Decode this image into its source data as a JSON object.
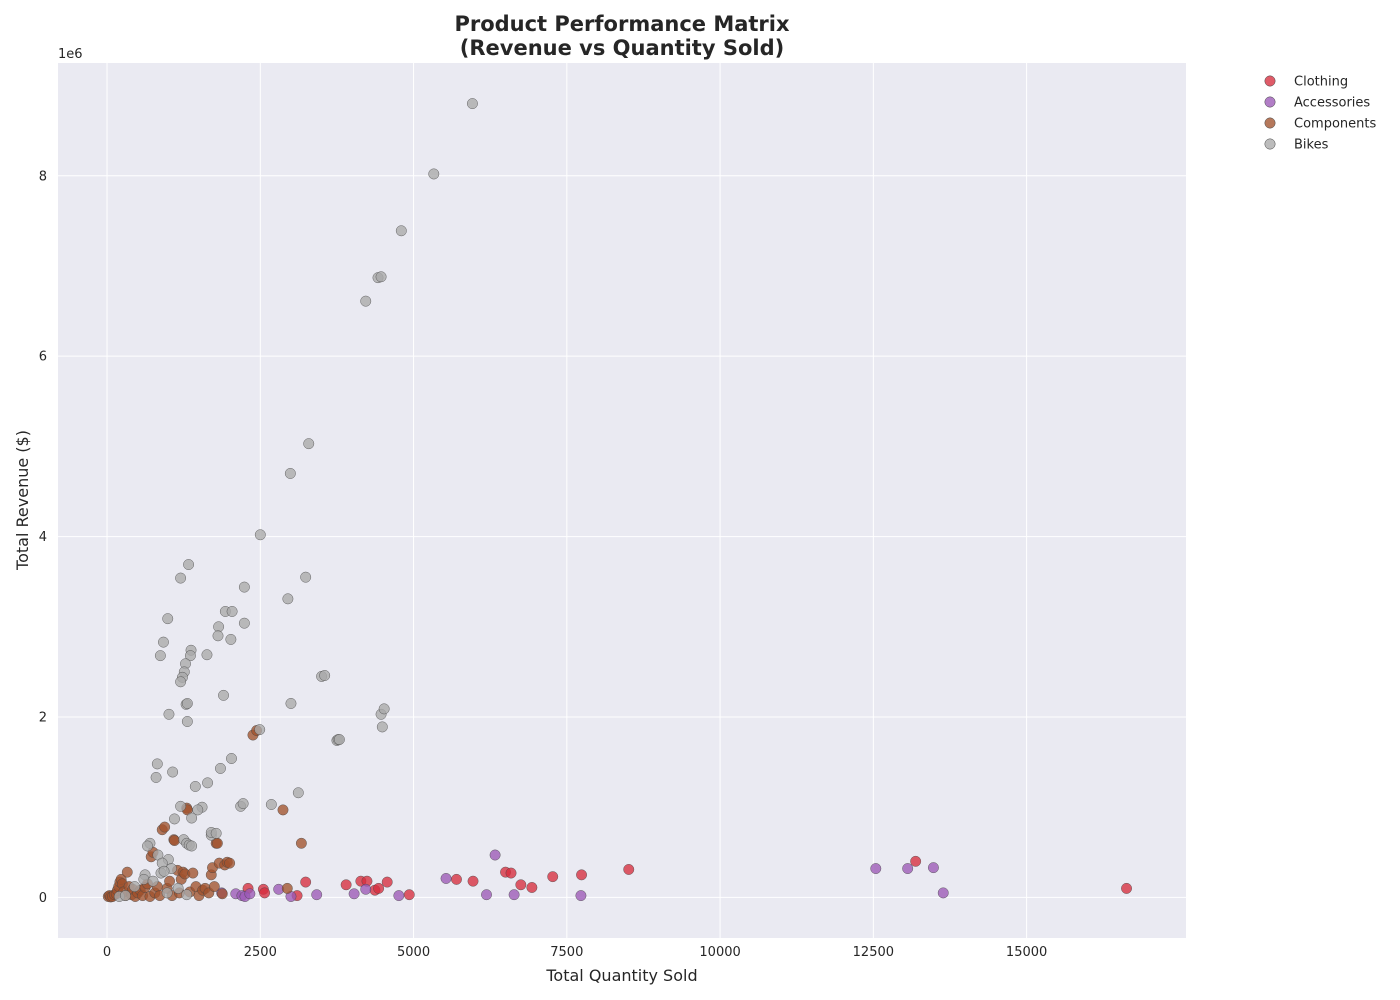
{
  "chart_data": {
    "type": "scatter",
    "title": [
      "Product Performance Matrix",
      "(Revenue vs Quantity Sold)"
    ],
    "xlabel": "Total Quantity Sold",
    "ylabel": "Total Revenue ($)",
    "y_offset_label": "1e6",
    "xlim": [
      -800,
      17600
    ],
    "ylim": [
      -0.45,
      9.25
    ],
    "xticks": [
      0,
      2500,
      5000,
      7500,
      10000,
      12500,
      15000
    ],
    "yticks": [
      0,
      2,
      4,
      6,
      8
    ],
    "grid": true,
    "legend_position": "outside-top-right",
    "series": [
      {
        "name": "Clothing",
        "color": "#d62d3d",
        "points": [
          [
            2300,
            0.1
          ],
          [
            2550,
            0.09
          ],
          [
            2570,
            0.05
          ],
          [
            3100,
            0.02
          ],
          [
            3240,
            0.17
          ],
          [
            3900,
            0.14
          ],
          [
            4140,
            0.18
          ],
          [
            4240,
            0.18
          ],
          [
            4370,
            0.08
          ],
          [
            4430,
            0.1
          ],
          [
            4570,
            0.17
          ],
          [
            4930,
            0.03
          ],
          [
            5700,
            0.2
          ],
          [
            5970,
            0.18
          ],
          [
            6500,
            0.28
          ],
          [
            6590,
            0.27
          ],
          [
            6750,
            0.14
          ],
          [
            6930,
            0.11
          ],
          [
            7270,
            0.23
          ],
          [
            7740,
            0.25
          ],
          [
            8510,
            0.31
          ],
          [
            13190,
            0.4
          ],
          [
            16630,
            0.1
          ]
        ]
      },
      {
        "name": "Accessories",
        "color": "#9b59b6",
        "points": [
          [
            1870,
            0.05
          ],
          [
            2100,
            0.04
          ],
          [
            2200,
            0.02
          ],
          [
            2250,
            0.01
          ],
          [
            2330,
            0.04
          ],
          [
            2800,
            0.09
          ],
          [
            3000,
            0.01
          ],
          [
            3420,
            0.03
          ],
          [
            4030,
            0.04
          ],
          [
            4220,
            0.09
          ],
          [
            4760,
            0.02
          ],
          [
            5530,
            0.21
          ],
          [
            6190,
            0.03
          ],
          [
            6330,
            0.47
          ],
          [
            6640,
            0.03
          ],
          [
            7730,
            0.02
          ],
          [
            12540,
            0.32
          ],
          [
            13060,
            0.32
          ],
          [
            13480,
            0.33
          ],
          [
            13640,
            0.05
          ]
        ]
      },
      {
        "name": "Components",
        "color": "#a0522d",
        "points": [
          [
            20,
            0.01
          ],
          [
            40,
            0.02
          ],
          [
            60,
            0.005
          ],
          [
            90,
            0.01
          ],
          [
            120,
            0.03
          ],
          [
            150,
            0.04
          ],
          [
            170,
            0.08
          ],
          [
            190,
            0.12
          ],
          [
            210,
            0.17
          ],
          [
            230,
            0.2
          ],
          [
            250,
            0.15
          ],
          [
            270,
            0.06
          ],
          [
            300,
            0.02
          ],
          [
            330,
            0.28
          ],
          [
            360,
            0.12
          ],
          [
            400,
            0.03
          ],
          [
            420,
            0.09
          ],
          [
            460,
            0.01
          ],
          [
            500,
            0.05
          ],
          [
            540,
            0.08
          ],
          [
            580,
            0.02
          ],
          [
            620,
            0.11
          ],
          [
            660,
            0.15
          ],
          [
            700,
            0.01
          ],
          [
            720,
            0.45
          ],
          [
            750,
            0.5
          ],
          [
            780,
            0.05
          ],
          [
            820,
            0.12
          ],
          [
            860,
            0.02
          ],
          [
            900,
            0.75
          ],
          [
            940,
            0.78
          ],
          [
            980,
            0.1
          ],
          [
            1020,
            0.18
          ],
          [
            1060,
            0.02
          ],
          [
            1090,
            0.64
          ],
          [
            1100,
            0.63
          ],
          [
            1150,
            0.3
          ],
          [
            1180,
            0.05
          ],
          [
            1210,
            0.2
          ],
          [
            1240,
            0.28
          ],
          [
            1270,
            0.26
          ],
          [
            1300,
            0.99
          ],
          [
            1310,
            0.97
          ],
          [
            1350,
            0.06
          ],
          [
            1400,
            0.27
          ],
          [
            1450,
            0.12
          ],
          [
            1500,
            0.02
          ],
          [
            1560,
            0.08
          ],
          [
            1600,
            0.1
          ],
          [
            1660,
            0.05
          ],
          [
            1700,
            0.25
          ],
          [
            1720,
            0.33
          ],
          [
            1750,
            0.12
          ],
          [
            1780,
            0.6
          ],
          [
            1800,
            0.6
          ],
          [
            1830,
            0.38
          ],
          [
            1880,
            0.04
          ],
          [
            1920,
            0.36
          ],
          [
            1960,
            0.39
          ],
          [
            2000,
            0.38
          ],
          [
            2380,
            1.8
          ],
          [
            2440,
            1.85
          ],
          [
            2870,
            0.97
          ],
          [
            2940,
            0.1
          ],
          [
            3170,
            0.6
          ]
        ]
      },
      {
        "name": "Bikes",
        "color": "#a9a9a9",
        "points": [
          [
            5960,
            8.8
          ],
          [
            5330,
            8.02
          ],
          [
            4800,
            7.39
          ],
          [
            4420,
            6.87
          ],
          [
            4470,
            6.88
          ],
          [
            4220,
            6.61
          ],
          [
            3290,
            5.03
          ],
          [
            2990,
            4.7
          ],
          [
            2500,
            4.02
          ],
          [
            1330,
            3.69
          ],
          [
            1200,
            3.54
          ],
          [
            3240,
            3.55
          ],
          [
            2240,
            3.44
          ],
          [
            2950,
            3.31
          ],
          [
            990,
            3.09
          ],
          [
            1930,
            3.17
          ],
          [
            2040,
            3.17
          ],
          [
            2240,
            3.04
          ],
          [
            1820,
            3.0
          ],
          [
            1810,
            2.9
          ],
          [
            2020,
            2.86
          ],
          [
            920,
            2.83
          ],
          [
            1370,
            2.74
          ],
          [
            1360,
            2.68
          ],
          [
            1630,
            2.69
          ],
          [
            870,
            2.68
          ],
          [
            1280,
            2.59
          ],
          [
            1260,
            2.5
          ],
          [
            1230,
            2.44
          ],
          [
            1200,
            2.39
          ],
          [
            3500,
            2.45
          ],
          [
            3550,
            2.46
          ],
          [
            1900,
            2.24
          ],
          [
            1290,
            2.14
          ],
          [
            1310,
            2.15
          ],
          [
            3000,
            2.15
          ],
          [
            1010,
            2.03
          ],
          [
            4470,
            2.03
          ],
          [
            4520,
            2.09
          ],
          [
            1310,
            1.95
          ],
          [
            4490,
            1.89
          ],
          [
            2490,
            1.86
          ],
          [
            3750,
            1.74
          ],
          [
            3770,
            1.75
          ],
          [
            3790,
            1.75
          ],
          [
            2030,
            1.54
          ],
          [
            820,
            1.48
          ],
          [
            1850,
            1.43
          ],
          [
            1070,
            1.39
          ],
          [
            800,
            1.33
          ],
          [
            1640,
            1.27
          ],
          [
            1440,
            1.23
          ],
          [
            3120,
            1.16
          ],
          [
            1200,
            1.01
          ],
          [
            1550,
            1.0
          ],
          [
            2180,
            1.01
          ],
          [
            2220,
            1.04
          ],
          [
            2680,
            1.03
          ],
          [
            1480,
            0.97
          ],
          [
            1100,
            0.87
          ],
          [
            1380,
            0.88
          ],
          [
            1700,
            0.69
          ],
          [
            1700,
            0.72
          ],
          [
            1780,
            0.71
          ],
          [
            700,
            0.6
          ],
          [
            660,
            0.57
          ],
          [
            1250,
            0.64
          ],
          [
            1300,
            0.6
          ],
          [
            1340,
            0.58
          ],
          [
            1380,
            0.57
          ],
          [
            830,
            0.47
          ],
          [
            1000,
            0.42
          ],
          [
            900,
            0.38
          ],
          [
            1050,
            0.32
          ],
          [
            880,
            0.27
          ],
          [
            930,
            0.29
          ],
          [
            620,
            0.25
          ],
          [
            600,
            0.2
          ],
          [
            750,
            0.18
          ],
          [
            450,
            0.12
          ],
          [
            980,
            0.05
          ],
          [
            1160,
            0.1
          ],
          [
            1300,
            0.03
          ],
          [
            200,
            0.01
          ],
          [
            300,
            0.02
          ]
        ]
      }
    ]
  }
}
